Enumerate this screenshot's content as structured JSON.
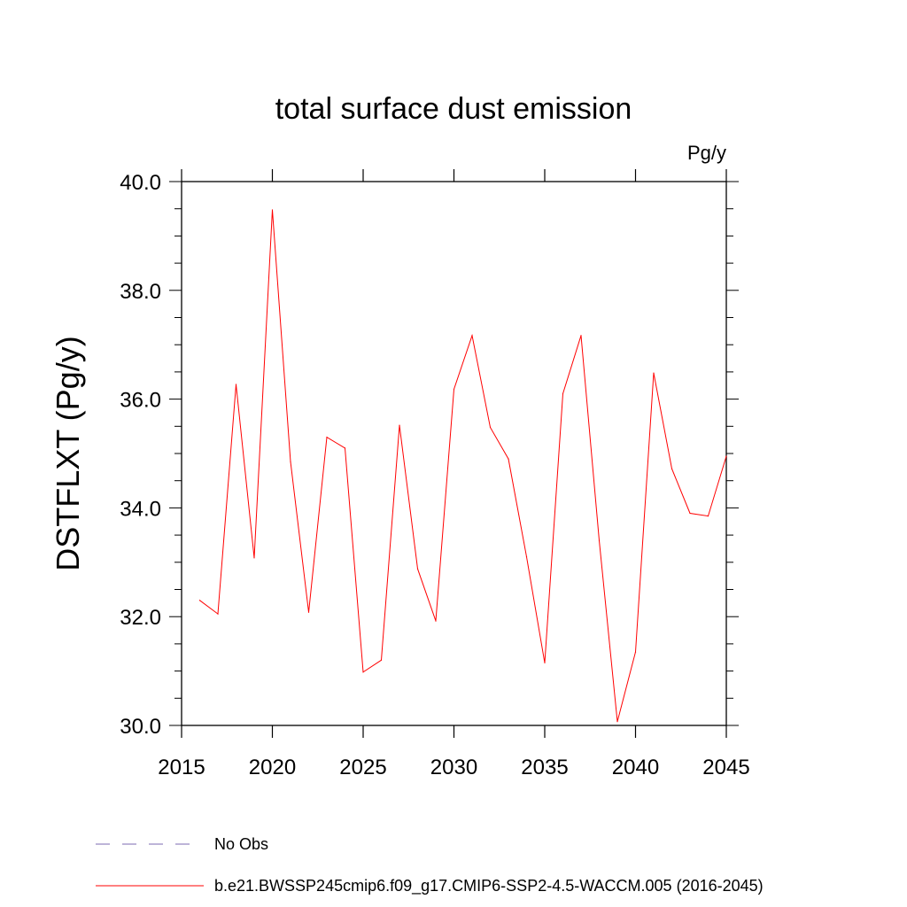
{
  "chart_data": {
    "type": "line",
    "title": "total surface dust emission",
    "units": "Pg/y",
    "ylabel": "DSTFLXT  (Pg/y)",
    "xlabel": "",
    "xlim": [
      2015,
      2045
    ],
    "ylim": [
      30.0,
      40.0
    ],
    "xticks": [
      "2015",
      "2020",
      "2025",
      "2030",
      "2035",
      "2040",
      "2045"
    ],
    "yticks": [
      "30.0",
      "32.0",
      "34.0",
      "36.0",
      "38.0",
      "40.0"
    ],
    "series": [
      {
        "name": "b.e21.BWSSP245cmip6.f09_g17.CMIP6-SSP2-4.5-WACCM.005 (2016-2045)",
        "color": "#ff0000",
        "x": [
          2016,
          2017,
          2018,
          2019,
          2020,
          2021,
          2022,
          2023,
          2024,
          2025,
          2026,
          2027,
          2028,
          2029,
          2030,
          2031,
          2032,
          2033,
          2034,
          2035,
          2036,
          2037,
          2038,
          2039,
          2040,
          2041,
          2042,
          2043,
          2044,
          2045
        ],
        "values": [
          32.3,
          32.05,
          36.27,
          33.08,
          39.48,
          34.85,
          32.08,
          35.3,
          35.1,
          30.98,
          31.2,
          35.52,
          32.88,
          31.92,
          36.18,
          37.17,
          35.48,
          34.9,
          33.1,
          31.15,
          36.1,
          37.17,
          33.4,
          30.07,
          31.35,
          36.48,
          34.72,
          33.9,
          33.85,
          34.95
        ]
      }
    ],
    "legend": [
      {
        "label": "No Obs",
        "color": "#7b68b0",
        "style": "dashed"
      },
      {
        "label": "b.e21.BWSSP245cmip6.f09_g17.CMIP6-SSP2-4.5-WACCM.005 (2016-2045)",
        "color": "#ff0000",
        "style": "solid"
      }
    ],
    "legend_position": "bottom-left"
  }
}
